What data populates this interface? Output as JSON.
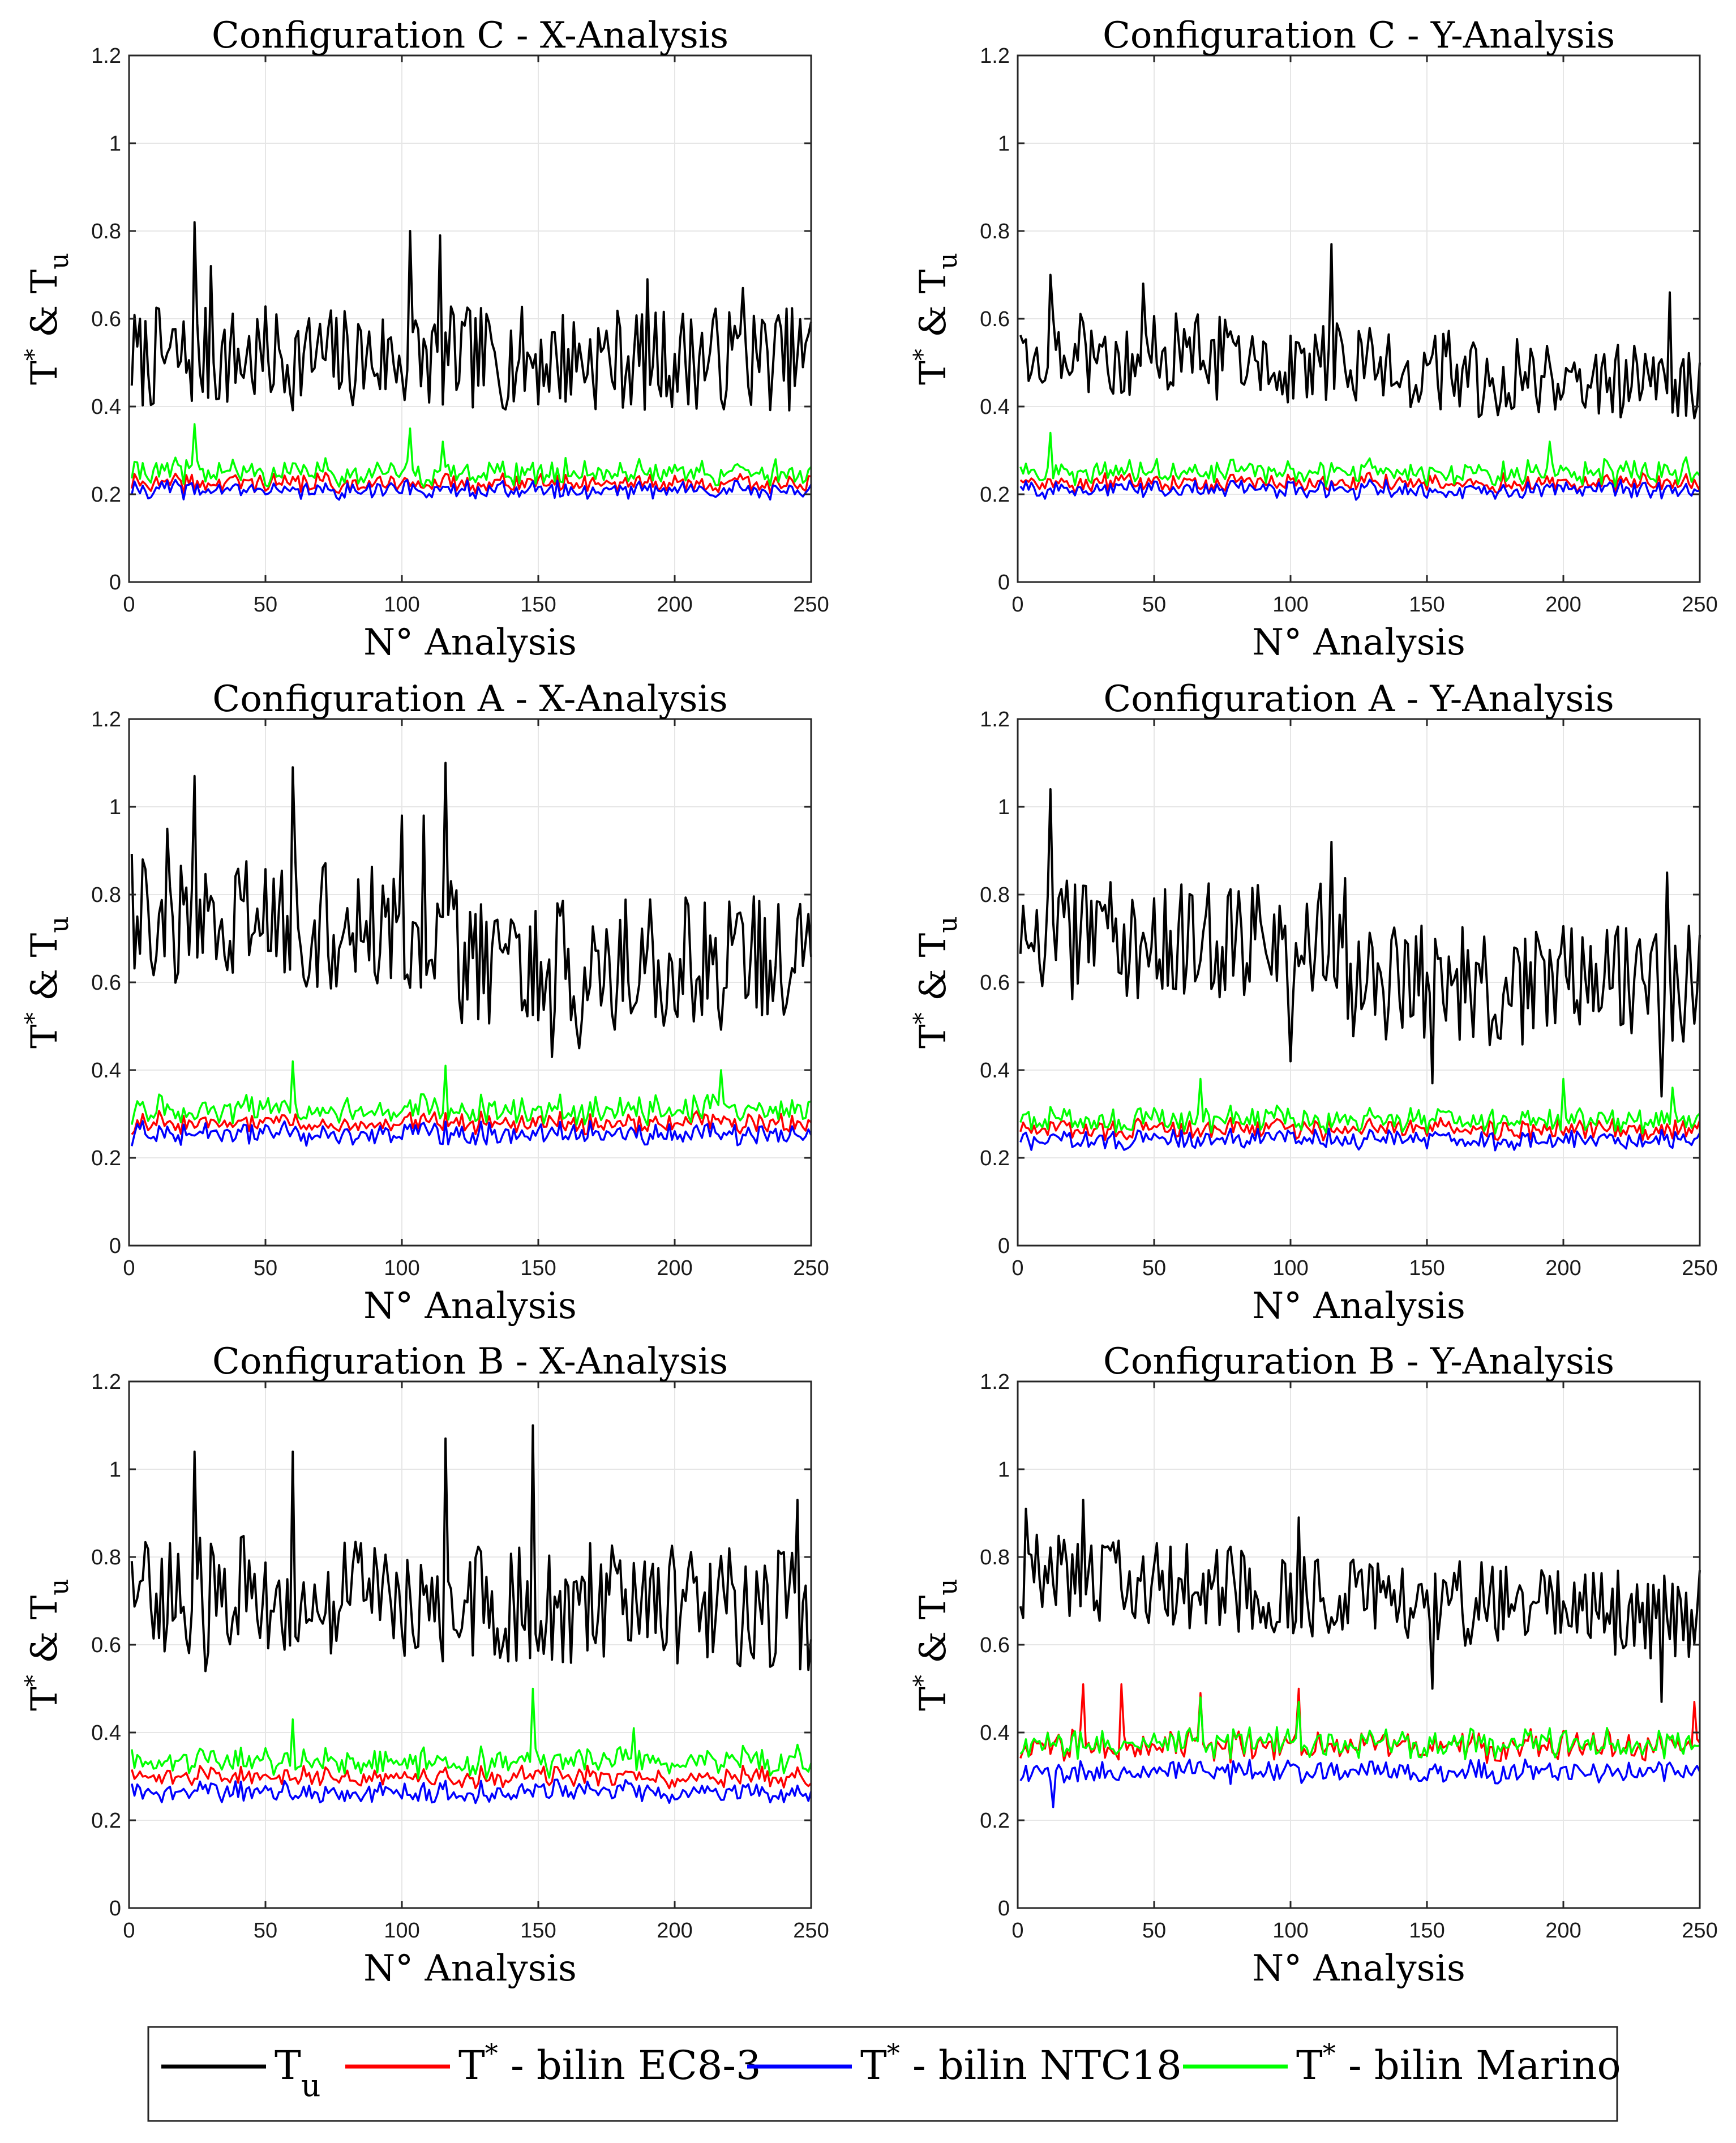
{
  "figure": {
    "legend": [
      {
        "label": "T",
        "sub": "u",
        "color": "#000000"
      },
      {
        "label": "T",
        "sup": "*",
        "suffix": " - bilin EC8-3",
        "color": "#ff0000"
      },
      {
        "label": "T",
        "sup": "*",
        "suffix": " - bilin NTC18",
        "color": "#0000ff"
      },
      {
        "label": "T",
        "sup": "*",
        "suffix": " - bilin Marino",
        "color": "#00ff00"
      }
    ],
    "colors": {
      "tu": "#000000",
      "ec8": "#ff0000",
      "ntc18": "#0000ff",
      "marino": "#00ff00",
      "grid": "#e6e6e6",
      "axis": "#262626"
    }
  },
  "chart_data": [
    {
      "type": "line",
      "title": "Configuration C - X-Analysis",
      "xlabel": "N° Analysis",
      "ylabel": {
        "main": "T",
        "sup": "*",
        "mid": " & T",
        "sub": "u"
      },
      "xlim": [
        0,
        250
      ],
      "ylim": [
        0,
        1.2
      ],
      "xticks": [
        0,
        50,
        100,
        150,
        200,
        250
      ],
      "yticks": [
        0,
        0.2,
        0.4,
        0.6,
        0.8,
        1,
        1.2
      ],
      "grid": true,
      "x": {
        "start": 1,
        "end": 250
      },
      "series": [
        {
          "key": "tu",
          "name": "Tu",
          "mean": 0.51,
          "amp": 0.085,
          "spikes": [
            [
              24,
              0.82
            ],
            [
              103,
              0.8
            ],
            [
              114,
              0.79
            ],
            [
              4,
              0.6
            ],
            [
              30,
              0.72
            ],
            [
              190,
              0.69
            ],
            [
              225,
              0.67
            ]
          ]
        },
        {
          "key": "ec8",
          "name": "T* - bilin EC8-3",
          "mean": 0.225,
          "amp": 0.018,
          "spikes": []
        },
        {
          "key": "ntc18",
          "name": "T* - bilin NTC18",
          "mean": 0.21,
          "amp": 0.018,
          "spikes": []
        },
        {
          "key": "marino",
          "name": "T* - bilin Marino",
          "mean": 0.25,
          "amp": 0.025,
          "spikes": [
            [
              24,
              0.36
            ],
            [
              103,
              0.35
            ],
            [
              115,
              0.32
            ]
          ]
        }
      ]
    },
    {
      "type": "line",
      "title": "Configuration C - Y-Analysis",
      "xlabel": "N° Analysis",
      "ylabel": {
        "main": "T",
        "sup": "*",
        "mid": " & T",
        "sub": "u"
      },
      "xlim": [
        0,
        250
      ],
      "ylim": [
        0,
        1.2
      ],
      "xticks": [
        0,
        50,
        100,
        150,
        200,
        250
      ],
      "yticks": [
        0,
        0.2,
        0.4,
        0.6,
        0.8,
        1,
        1.2
      ],
      "grid": true,
      "x": {
        "start": 1,
        "end": 250
      },
      "series": [
        {
          "key": "tu",
          "name": "Tu",
          "mean": 0.54,
          "amp": 0.07,
          "trend": -0.1,
          "spikes": [
            [
              115,
              0.77
            ],
            [
              12,
              0.7
            ],
            [
              46,
              0.68
            ],
            [
              239,
              0.66
            ],
            [
              250,
              0.5
            ]
          ]
        },
        {
          "key": "ec8",
          "name": "T* - bilin EC8-3",
          "mean": 0.225,
          "amp": 0.018,
          "spikes": []
        },
        {
          "key": "ntc18",
          "name": "T* - bilin NTC18",
          "mean": 0.21,
          "amp": 0.018,
          "spikes": []
        },
        {
          "key": "marino",
          "name": "T* - bilin Marino",
          "mean": 0.25,
          "amp": 0.025,
          "spikes": [
            [
              12,
              0.34
            ],
            [
              195,
              0.32
            ]
          ]
        }
      ]
    },
    {
      "type": "line",
      "title": "Configuration A - X-Analysis",
      "xlabel": "N° Analysis",
      "ylabel": {
        "main": "T",
        "sup": "*",
        "mid": " & T",
        "sub": "u"
      },
      "xlim": [
        0,
        250
      ],
      "ylim": [
        0,
        1.2
      ],
      "xticks": [
        0,
        50,
        100,
        150,
        200,
        250
      ],
      "yticks": [
        0,
        0.2,
        0.4,
        0.6,
        0.8,
        1,
        1.2
      ],
      "grid": true,
      "x": {
        "start": 1,
        "end": 250
      },
      "series": [
        {
          "key": "tu",
          "name": "Tu",
          "mean": 0.74,
          "amp": 0.11,
          "trend": -0.14,
          "split": 120,
          "spikes": [
            [
              24,
              1.07
            ],
            [
              60,
              1.09
            ],
            [
              100,
              0.98
            ],
            [
              108,
              0.98
            ],
            [
              116,
              1.1
            ],
            [
              5,
              0.88
            ],
            [
              14,
              0.95
            ],
            [
              155,
              0.43
            ],
            [
              165,
              0.45
            ]
          ]
        },
        {
          "key": "ec8",
          "name": "T* - bilin EC8-3",
          "mean": 0.28,
          "amp": 0.02,
          "spikes": []
        },
        {
          "key": "ntc18",
          "name": "T* - bilin NTC18",
          "mean": 0.255,
          "amp": 0.022,
          "spikes": []
        },
        {
          "key": "marino",
          "name": "T* - bilin Marino",
          "mean": 0.31,
          "amp": 0.028,
          "spikes": [
            [
              60,
              0.42
            ],
            [
              116,
              0.41
            ],
            [
              217,
              0.4
            ]
          ]
        }
      ]
    },
    {
      "type": "line",
      "title": "Configuration A - Y-Analysis",
      "xlabel": "N° Analysis",
      "ylabel": {
        "main": "T",
        "sup": "*",
        "mid": " & T",
        "sub": "u"
      },
      "xlim": [
        0,
        250
      ],
      "ylim": [
        0,
        1.2
      ],
      "xticks": [
        0,
        50,
        100,
        150,
        200,
        250
      ],
      "yticks": [
        0,
        0.2,
        0.4,
        0.6,
        0.8,
        1,
        1.2
      ],
      "grid": true,
      "x": {
        "start": 1,
        "end": 250
      },
      "series": [
        {
          "key": "tu",
          "name": "Tu",
          "mean": 0.7,
          "amp": 0.1,
          "trend": -0.15,
          "split": 120,
          "spikes": [
            [
              12,
              1.04
            ],
            [
              115,
              0.92
            ],
            [
              238,
              0.85
            ],
            [
              100,
              0.42
            ],
            [
              236,
              0.34
            ],
            [
              152,
              0.37
            ]
          ]
        },
        {
          "key": "ec8",
          "name": "T* - bilin EC8-3",
          "mean": 0.265,
          "amp": 0.02,
          "spikes": []
        },
        {
          "key": "ntc18",
          "name": "T* - bilin NTC18",
          "mean": 0.24,
          "amp": 0.02,
          "spikes": []
        },
        {
          "key": "marino",
          "name": "T* - bilin Marino",
          "mean": 0.285,
          "amp": 0.025,
          "spikes": [
            [
              67,
              0.38
            ],
            [
              200,
              0.38
            ],
            [
              240,
              0.36
            ]
          ]
        }
      ]
    },
    {
      "type": "line",
      "title": "Configuration B - X-Analysis",
      "xlabel": "N° Analysis",
      "ylabel": {
        "main": "T",
        "sup": "*",
        "mid": " & T",
        "sub": "u"
      },
      "xlim": [
        0,
        250
      ],
      "ylim": [
        0,
        1.2
      ],
      "xticks": [
        0,
        50,
        100,
        150,
        200,
        250
      ],
      "yticks": [
        0,
        0.2,
        0.4,
        0.6,
        0.8,
        1,
        1.2
      ],
      "grid": true,
      "x": {
        "start": 1,
        "end": 250
      },
      "series": [
        {
          "key": "tu",
          "name": "Tu",
          "mean": 0.72,
          "amp": 0.1,
          "trend": -0.04,
          "spikes": [
            [
              24,
              1.04
            ],
            [
              60,
              1.04
            ],
            [
              116,
              1.07
            ],
            [
              148,
              1.1
            ],
            [
              245,
              0.93
            ],
            [
              28,
              0.54
            ],
            [
              235,
              0.55
            ]
          ]
        },
        {
          "key": "ec8",
          "name": "T* - bilin EC8-3",
          "mean": 0.3,
          "amp": 0.02,
          "spikes": []
        },
        {
          "key": "ntc18",
          "name": "T* - bilin NTC18",
          "mean": 0.265,
          "amp": 0.022,
          "spikes": []
        },
        {
          "key": "marino",
          "name": "T* - bilin Marino",
          "mean": 0.335,
          "amp": 0.03,
          "spikes": [
            [
              60,
              0.43
            ],
            [
              148,
              0.5
            ],
            [
              185,
              0.41
            ]
          ]
        }
      ]
    },
    {
      "type": "line",
      "title": "Configuration B - Y-Analysis",
      "xlabel": "N° Analysis",
      "ylabel": {
        "main": "T",
        "sup": "*",
        "mid": " & T",
        "sub": "u"
      },
      "xlim": [
        0,
        250
      ],
      "ylim": [
        0,
        1.2
      ],
      "xticks": [
        0,
        50,
        100,
        150,
        200,
        250
      ],
      "yticks": [
        0,
        0.2,
        0.4,
        0.6,
        0.8,
        1,
        1.2
      ],
      "grid": true,
      "x": {
        "start": 1,
        "end": 250
      },
      "series": [
        {
          "key": "tu",
          "name": "Tu",
          "mean": 0.76,
          "amp": 0.07,
          "trend": -0.1,
          "spikes": [
            [
              3,
              0.91
            ],
            [
              24,
              0.93
            ],
            [
              103,
              0.89
            ],
            [
              152,
              0.5
            ],
            [
              236,
              0.47
            ],
            [
              250,
              0.77
            ]
          ]
        },
        {
          "key": "ec8",
          "name": "T* - bilin EC8-3",
          "mean": 0.37,
          "amp": 0.03,
          "spikes": [
            [
              24,
              0.51
            ],
            [
              38,
              0.51
            ],
            [
              67,
              0.49
            ],
            [
              103,
              0.5
            ],
            [
              248,
              0.47
            ]
          ]
        },
        {
          "key": "ntc18",
          "name": "T* - bilin NTC18",
          "mean": 0.31,
          "amp": 0.022,
          "spikes": [
            [
              13,
              0.23
            ]
          ]
        },
        {
          "key": "marino",
          "name": "T* - bilin Marino",
          "mean": 0.375,
          "amp": 0.028,
          "spikes": [
            [
              67,
              0.48
            ],
            [
              103,
              0.47
            ]
          ]
        }
      ]
    }
  ]
}
